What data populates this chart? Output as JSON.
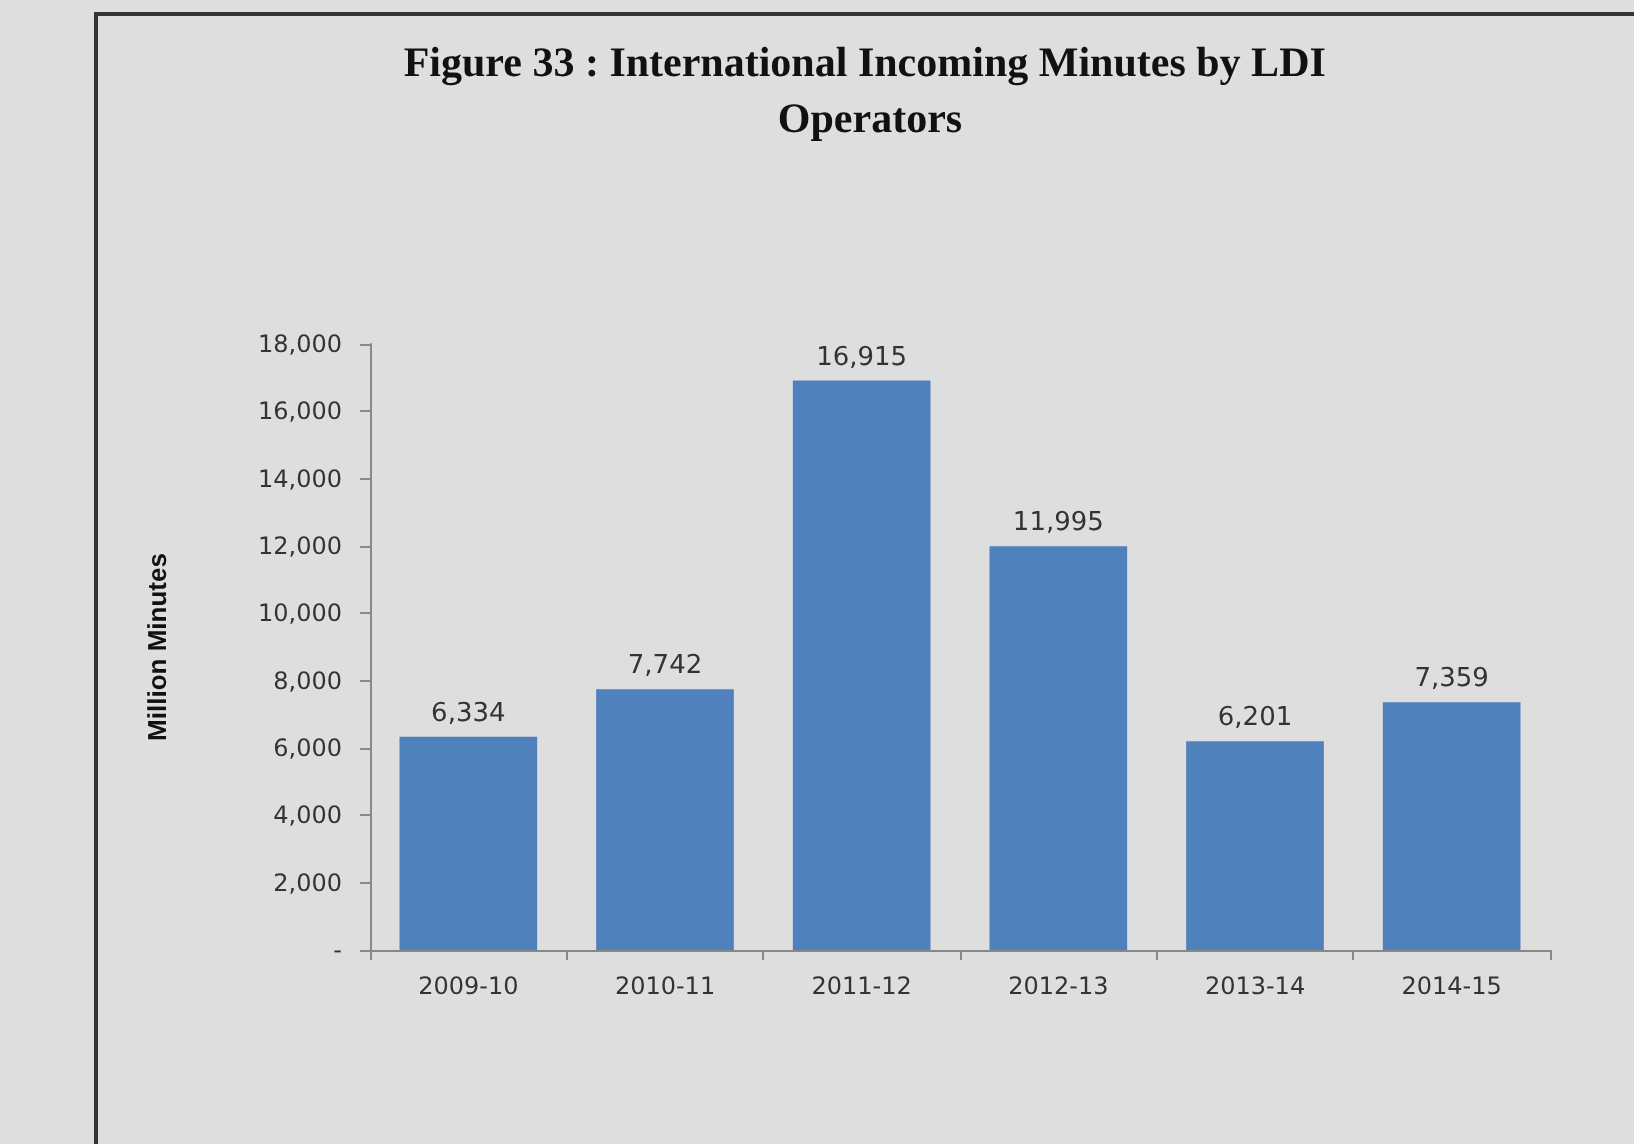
{
  "chart_data": {
    "type": "bar",
    "title": "Figure 33 : International Incoming Minutes by LDI Operators",
    "ylabel": "Million Minutes",
    "categories": [
      "2009-10",
      "2010-11",
      "2011-12",
      "2012-13",
      "2013-14",
      "2014-15"
    ],
    "values": [
      6334,
      7742,
      16915,
      11995,
      6201,
      7359
    ],
    "value_labels": [
      "6,334",
      "7,742",
      "16,915",
      "11,995",
      "6,201",
      "7,359"
    ],
    "color": "#4f81bd",
    "ylim": [
      0,
      18000
    ],
    "yticks": [
      {
        "value": 0,
        "label": "-"
      },
      {
        "value": 2000,
        "label": "2,000"
      },
      {
        "value": 4000,
        "label": "4,000"
      },
      {
        "value": 6000,
        "label": "6,000"
      },
      {
        "value": 8000,
        "label": "8,000"
      },
      {
        "value": 10000,
        "label": "10,000"
      },
      {
        "value": 12000,
        "label": "12,000"
      },
      {
        "value": 14000,
        "label": "14,000"
      },
      {
        "value": 16000,
        "label": "16,000"
      },
      {
        "value": 18000,
        "label": "18,000"
      }
    ],
    "grid": false
  }
}
